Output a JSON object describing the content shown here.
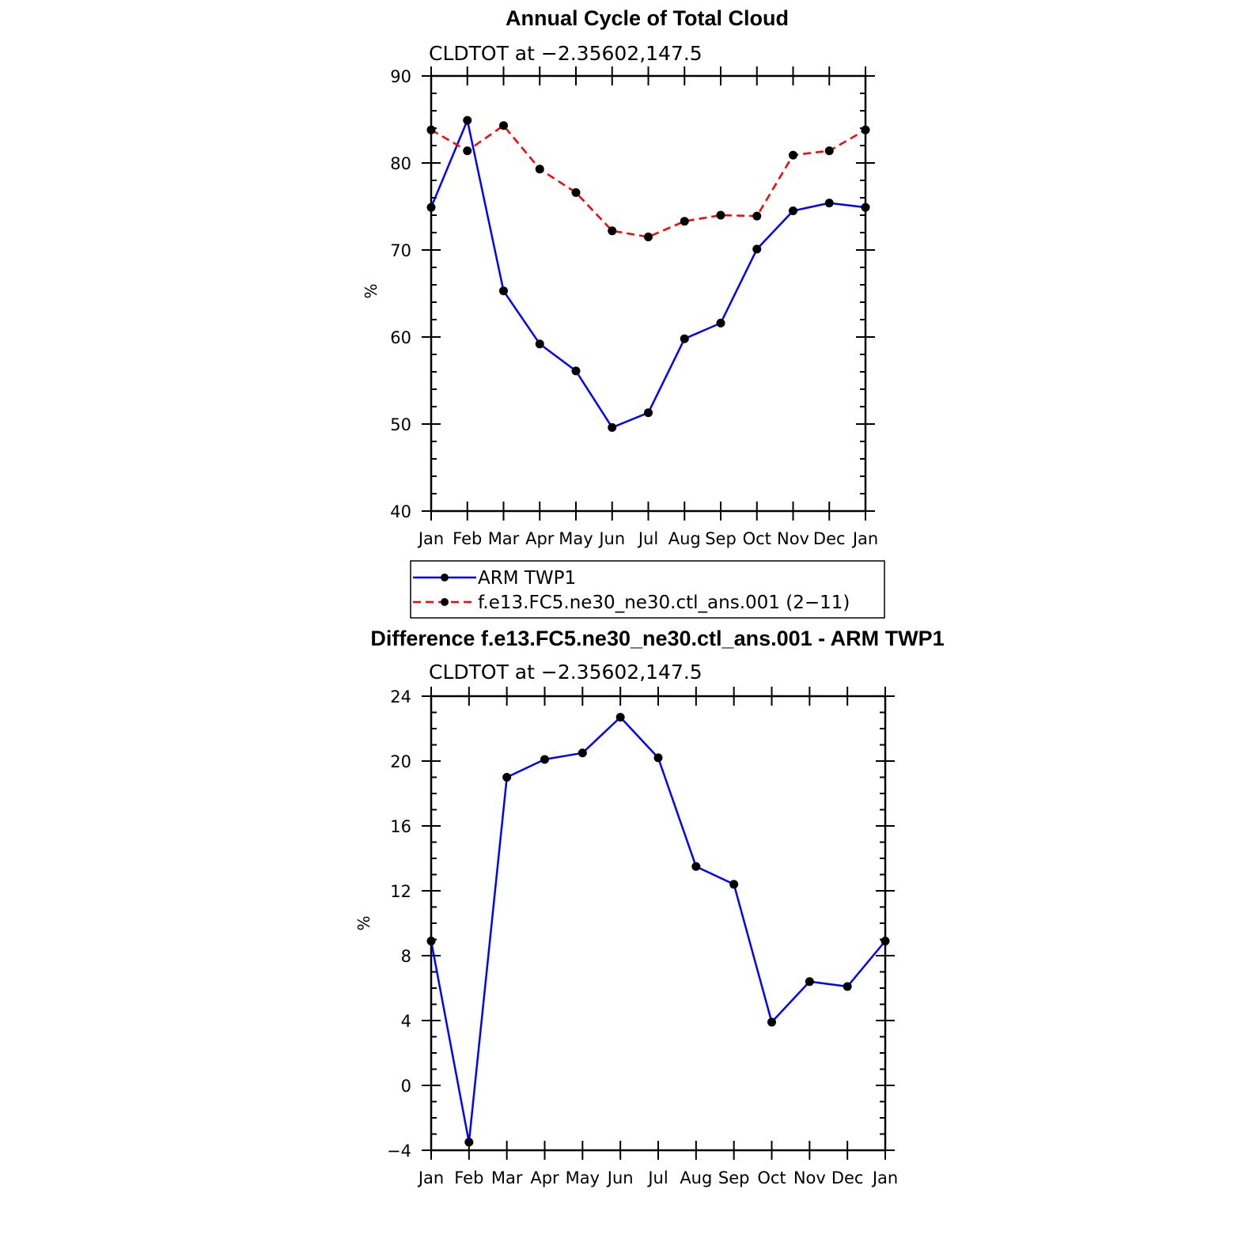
{
  "chart_data": [
    {
      "type": "line",
      "title": "Annual Cycle of Total Cloud",
      "subtitle": "CLDTOT at −2.35602,147.5",
      "xlabel": "",
      "ylabel": "%",
      "categories": [
        "Jan",
        "Feb",
        "Mar",
        "Apr",
        "May",
        "Jun",
        "Jul",
        "Aug",
        "Sep",
        "Oct",
        "Nov",
        "Dec",
        "Jan"
      ],
      "ylim": [
        40,
        90
      ],
      "yticks": [
        40,
        50,
        60,
        70,
        80,
        90
      ],
      "ytick_labels": [
        "40",
        "50",
        "60",
        "70",
        "80",
        "90"
      ],
      "grid": false,
      "legend_position": "below",
      "series": [
        {
          "name": "ARM TWP1",
          "color": "#0000ff",
          "dash": "solid",
          "values": [
            74.9,
            84.9,
            65.3,
            59.2,
            56.1,
            49.6,
            51.3,
            59.8,
            61.6,
            70.1,
            74.5,
            75.4,
            74.9
          ]
        },
        {
          "name": "f.e13.FC5.ne30_ne30.ctl_ans.001 (2−11)",
          "color": "#ff0000",
          "dash": "dashed",
          "values": [
            83.8,
            81.4,
            84.3,
            79.3,
            76.6,
            72.2,
            71.5,
            73.3,
            74.0,
            73.9,
            80.9,
            81.4,
            83.8
          ]
        }
      ]
    },
    {
      "type": "line",
      "title": "Difference f.e13.FC5.ne30_ne30.ctl_ans.001 - ARM TWP1",
      "subtitle": "CLDTOT at −2.35602,147.5",
      "xlabel": "",
      "ylabel": "%",
      "categories": [
        "Jan",
        "Feb",
        "Mar",
        "Apr",
        "May",
        "Jun",
        "Jul",
        "Aug",
        "Sep",
        "Oct",
        "Nov",
        "Dec",
        "Jan"
      ],
      "ylim": [
        -4,
        24
      ],
      "yticks": [
        -4,
        0,
        4,
        8,
        12,
        16,
        20,
        24
      ],
      "ytick_labels": [
        "−4",
        "0",
        "4",
        "8",
        "12",
        "16",
        "20",
        "24"
      ],
      "grid": false,
      "series": [
        {
          "name": "Difference",
          "color": "#0000ff",
          "dash": "solid",
          "values": [
            8.9,
            -3.5,
            19.0,
            20.1,
            20.5,
            22.7,
            20.2,
            13.5,
            12.4,
            3.9,
            6.4,
            6.1,
            8.9
          ]
        }
      ]
    }
  ]
}
